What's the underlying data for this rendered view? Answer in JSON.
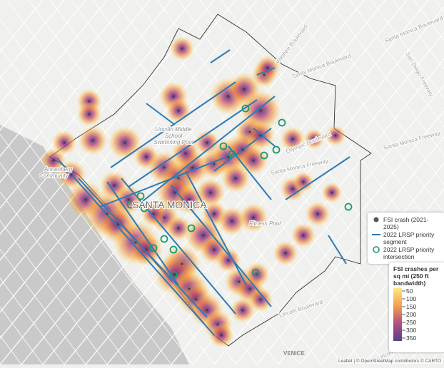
{
  "labels": [
    "Wilshire Boulevard",
    "Santa Monica Boulevard",
    "San Diego Freeway",
    "Santa Monica Freeway",
    "Olympic Boulevard",
    "Lincoln Boulevard",
    "Lincoln Middle",
    "School",
    "Swimming Pool",
    "Annenberg",
    "Community",
    "Fitness Pool",
    "SANTA MONICA",
    "VENICE"
  ],
  "legend": [
    "FSI crash (2021-2025)",
    "2022 LRSP priority segment",
    "2022 LRSP priority intersection"
  ],
  "colorbar": {
    "title": "FSI crashes per sq mi (250 ft bandwidth)",
    "ticks": [
      50,
      100,
      150,
      200,
      250,
      300,
      350
    ]
  },
  "attribution": "Leaflet | © OpenStreetMap contributors © CARTO"
}
